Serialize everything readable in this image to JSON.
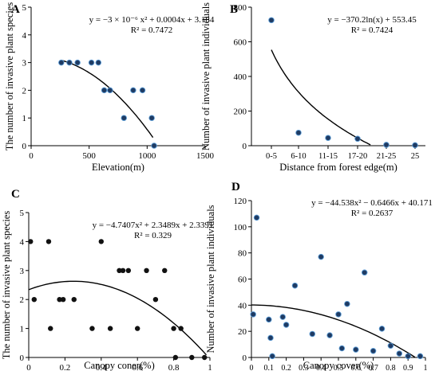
{
  "chart_data": [
    {
      "panel_label": "A",
      "type": "scatter",
      "xlabel": "Elevation(m)",
      "ylabel": "The number of invasive plant species",
      "equation": "y = −3 × 10⁻⁶ x² + 0.0004x + 3.184",
      "r2": "R² = 0.7472",
      "xlim": [
        0,
        1500
      ],
      "ylim": [
        0,
        5
      ],
      "xticks": [
        0,
        500,
        1000,
        1500
      ],
      "yticks": [
        0,
        1,
        2,
        3,
        4,
        5
      ],
      "x_tick_labels": [
        "0",
        "500",
        "1000",
        "1500"
      ],
      "y_tick_labels": [
        "0",
        "1",
        "2",
        "3",
        "4",
        "5"
      ],
      "point_style": "blue-dot",
      "points": [
        [
          260,
          3
        ],
        [
          330,
          3
        ],
        [
          400,
          3
        ],
        [
          520,
          3
        ],
        [
          580,
          3
        ],
        [
          630,
          2
        ],
        [
          680,
          2
        ],
        [
          800,
          1
        ],
        [
          880,
          2
        ],
        [
          960,
          2
        ],
        [
          1040,
          1
        ],
        [
          1060,
          0
        ]
      ],
      "trend": {
        "kind": "poly",
        "coef": [
          -3e-06,
          0.0004,
          3.184
        ],
        "domain": [
          260,
          1050
        ]
      }
    },
    {
      "panel_label": "B",
      "type": "scatter",
      "xlabel": "Distance from forest edge(m)",
      "ylabel": "Number of invasive plant individuals",
      "equation": "y = −370.2ln(x) + 553.45",
      "r2": "R² = 0.7424",
      "categories": [
        "0-5",
        "6-10",
        "11-15",
        "17-20",
        "21-25",
        "25"
      ],
      "ylim": [
        0,
        800
      ],
      "yticks": [
        0,
        200,
        400,
        600,
        800
      ],
      "y_tick_labels": [
        "0",
        "200",
        "400",
        "600",
        "800"
      ],
      "point_style": "blue-dot",
      "values": [
        725,
        75,
        45,
        40,
        5,
        3
      ],
      "trend": {
        "kind": "ln",
        "a": -370.2,
        "b": 553.45,
        "domain": [
          1,
          4.4
        ]
      }
    },
    {
      "panel_label": "C",
      "type": "scatter",
      "xlabel": "Canopy coner(%)",
      "ylabel": "The number of invasive plant species",
      "equation": "y = −4.7407x² + 2.3489x + 2.3391",
      "r2": "R² = 0.329",
      "xlim": [
        0,
        1
      ],
      "ylim": [
        0,
        5
      ],
      "xticks": [
        0,
        0.2,
        0.4,
        0.6,
        0.8,
        1
      ],
      "yticks": [
        0,
        1,
        2,
        3,
        4,
        5
      ],
      "x_tick_labels": [
        "0",
        "0.2",
        "0.4",
        "0.6",
        "0.8",
        "1"
      ],
      "y_tick_labels": [
        "0",
        "1",
        "2",
        "3",
        "4",
        "5"
      ],
      "point_style": "black-dot",
      "points": [
        [
          0.01,
          4
        ],
        [
          0.03,
          2
        ],
        [
          0.11,
          4
        ],
        [
          0.12,
          1
        ],
        [
          0.17,
          2
        ],
        [
          0.19,
          2
        ],
        [
          0.25,
          2
        ],
        [
          0.35,
          1
        ],
        [
          0.4,
          4
        ],
        [
          0.45,
          1
        ],
        [
          0.5,
          3
        ],
        [
          0.52,
          3
        ],
        [
          0.55,
          3
        ],
        [
          0.6,
          1
        ],
        [
          0.65,
          3
        ],
        [
          0.7,
          2
        ],
        [
          0.75,
          3
        ],
        [
          0.8,
          1
        ],
        [
          0.81,
          0
        ],
        [
          0.84,
          1
        ],
        [
          0.9,
          0
        ],
        [
          0.97,
          0
        ]
      ],
      "trend": {
        "kind": "poly",
        "coef": [
          -4.7407,
          2.3489,
          2.3391
        ],
        "domain": [
          0,
          0.98
        ]
      }
    },
    {
      "panel_label": "D",
      "type": "scatter",
      "xlabel": "Canopy cover(%)",
      "ylabel": "Number of invasive plant individuals",
      "equation": "y = −44.538x² − 0.6466x + 40.171",
      "r2": "R² = 0.2637",
      "xlim": [
        0,
        1
      ],
      "ylim": [
        0,
        120
      ],
      "xticks": [
        0,
        0.1,
        0.2,
        0.3,
        0.4,
        0.5,
        0.6,
        0.7,
        0.8,
        0.9,
        1
      ],
      "yticks": [
        0,
        20,
        40,
        60,
        80,
        100,
        120
      ],
      "x_tick_labels": [
        "0",
        "0.1",
        "0.2",
        "0.3",
        "0.4",
        "0.5",
        "0.6",
        "0.7",
        "0.8",
        "0.9",
        "1"
      ],
      "y_tick_labels": [
        "0",
        "20",
        "40",
        "60",
        "80",
        "100",
        "120"
      ],
      "point_style": "blue-dot",
      "points": [
        [
          0.01,
          33
        ],
        [
          0.03,
          107
        ],
        [
          0.1,
          29
        ],
        [
          0.11,
          15
        ],
        [
          0.12,
          1
        ],
        [
          0.18,
          31
        ],
        [
          0.2,
          25
        ],
        [
          0.25,
          55
        ],
        [
          0.35,
          18
        ],
        [
          0.4,
          77
        ],
        [
          0.45,
          17
        ],
        [
          0.5,
          33
        ],
        [
          0.52,
          7
        ],
        [
          0.55,
          41
        ],
        [
          0.6,
          6
        ],
        [
          0.65,
          65
        ],
        [
          0.7,
          5
        ],
        [
          0.75,
          22
        ],
        [
          0.8,
          9
        ],
        [
          0.85,
          3
        ],
        [
          0.9,
          1
        ],
        [
          0.97,
          1
        ]
      ],
      "trend": {
        "kind": "poly",
        "coef": [
          -44.538,
          -0.6466,
          40.171
        ],
        "domain": [
          0,
          0.94
        ]
      }
    }
  ],
  "colors": {
    "axis": "#000000",
    "point_blue_fill": "#1f3b63",
    "point_blue_edge": "#5b9bd5",
    "point_black": "#111111",
    "trend": "#000000"
  }
}
